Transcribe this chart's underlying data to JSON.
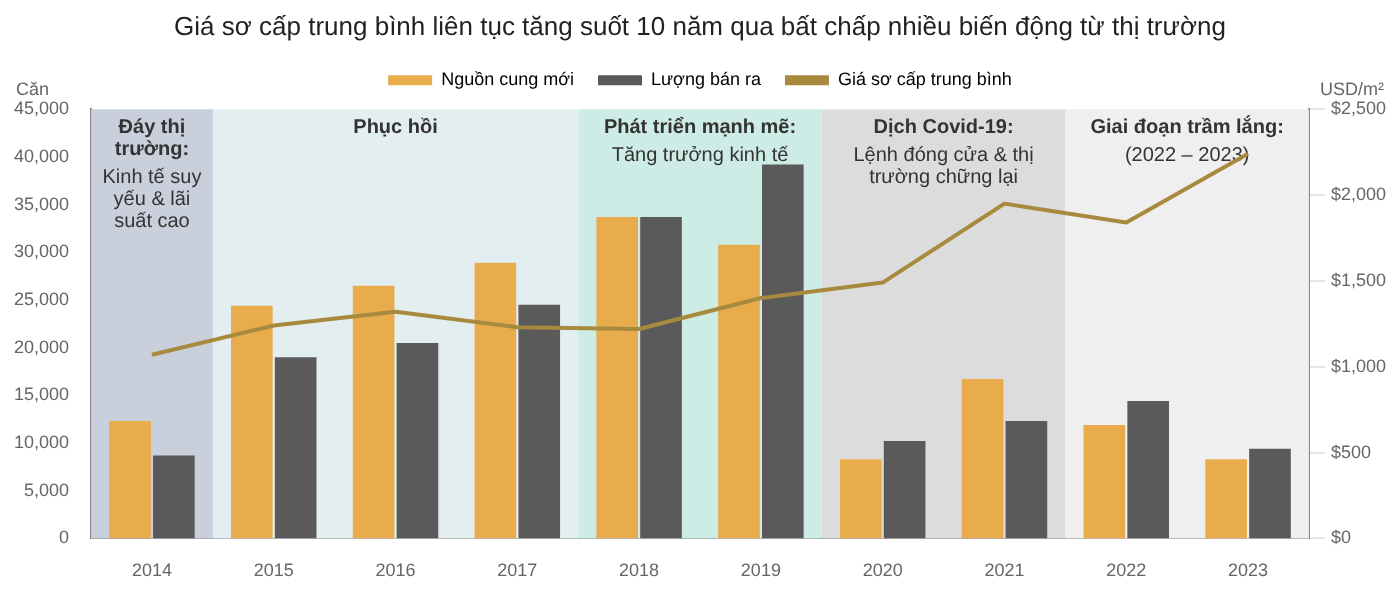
{
  "chart_data": {
    "type": "bar",
    "title": "Giá sơ cấp trung bình liên tục tăng suốt 10 năm qua bất chấp nhiều biến động từ thị trường",
    "ylabel": "Căn",
    "y2label": "USD/m²",
    "categories": [
      "2014",
      "2015",
      "2016",
      "2017",
      "2018",
      "2019",
      "2020",
      "2021",
      "2022",
      "2023"
    ],
    "series": [
      {
        "name": "Nguồn cung mới",
        "color": "#e8ac4c",
        "values": [
          12300,
          24400,
          26500,
          28900,
          33700,
          30800,
          8300,
          16700,
          11900,
          8300
        ]
      },
      {
        "name": "Lượng bán ra",
        "color": "#5a5a5a",
        "values": [
          8700,
          19000,
          20500,
          24500,
          33700,
          39200,
          10200,
          12300,
          14400,
          9400
        ]
      },
      {
        "name": "Giá sơ cấp trung bình",
        "type": "line",
        "axis": "y2",
        "color": "#a88a3f",
        "marker": "none",
        "values": [
          1070,
          1240,
          1320,
          1230,
          1220,
          1400,
          1490,
          1950,
          1840,
          2240
        ]
      }
    ],
    "ylim": [
      0,
      45000
    ],
    "yticks": [
      {
        "value": 0,
        "label": "0"
      },
      {
        "value": 5000,
        "label": "5,000"
      },
      {
        "value": 10000,
        "label": "10,000"
      },
      {
        "value": 15000,
        "label": "15,000"
      },
      {
        "value": 20000,
        "label": "20,000"
      },
      {
        "value": 25000,
        "label": "25,000"
      },
      {
        "value": 30000,
        "label": "30,000"
      },
      {
        "value": 35000,
        "label": "35,000"
      },
      {
        "value": 40000,
        "label": "40,000"
      },
      {
        "value": 45000,
        "label": "45,000"
      }
    ],
    "y2lim": [
      0,
      2500
    ],
    "y2ticks": [
      {
        "value": 0,
        "label": "$0"
      },
      {
        "value": 500,
        "label": "$500"
      },
      {
        "value": 1000,
        "label": "$1,000"
      },
      {
        "value": 1500,
        "label": "$1,500"
      },
      {
        "value": 2000,
        "label": "$2,000"
      },
      {
        "value": 2500,
        "label": "$2,500"
      }
    ],
    "bands": [
      {
        "axis": "x",
        "from": "2014",
        "to": "2014",
        "label": "Đáy thị trường:\nKinh tế suy yếu & lãi suất cao",
        "color": "#c9d0db"
      },
      {
        "axis": "x",
        "from": "2015",
        "to": "2017",
        "label": "Phục hồi",
        "color": "#e3eef1"
      },
      {
        "axis": "x",
        "from": "2018",
        "to": "2019",
        "label": "Phát triển mạnh mẽ:\nTăng trưởng kinh tế",
        "color": "#cdece5"
      },
      {
        "axis": "x",
        "from": "2020",
        "to": "2021",
        "label": "Dịch Covid-19:\nLệnh đóng cửa & thị trường chững lại",
        "color": "#dcdcdc"
      },
      {
        "axis": "x",
        "from": "2022",
        "to": "2023",
        "label": "Giai đoạn trầm lắng:\n(2022 – 2023)",
        "color": "#efefef"
      }
    ],
    "grid": false,
    "legend": "top"
  }
}
